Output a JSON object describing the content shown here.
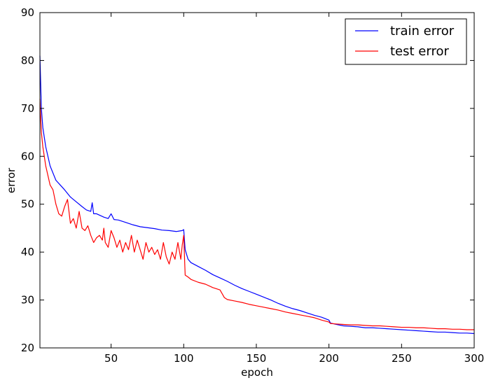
{
  "chart_data": {
    "type": "line",
    "title": "",
    "xlabel": "epoch",
    "ylabel": "error",
    "xlim": [
      1,
      300
    ],
    "ylim": [
      20,
      90
    ],
    "xticks": [
      50,
      100,
      150,
      200,
      250,
      300
    ],
    "yticks": [
      20,
      30,
      40,
      50,
      60,
      70,
      80,
      90
    ],
    "legend_position": "top-right",
    "grid": false,
    "series": [
      {
        "name": "train error",
        "color": "#0000ff",
        "points": [
          [
            1,
            81
          ],
          [
            2,
            70
          ],
          [
            3,
            66
          ],
          [
            5,
            62
          ],
          [
            8,
            58
          ],
          [
            12,
            55
          ],
          [
            15,
            54
          ],
          [
            18,
            53
          ],
          [
            22,
            51.5
          ],
          [
            26,
            50.5
          ],
          [
            30,
            49.5
          ],
          [
            33,
            48.8
          ],
          [
            36,
            48.5
          ],
          [
            37,
            50.3
          ],
          [
            38,
            48
          ],
          [
            40,
            48
          ],
          [
            45,
            47.3
          ],
          [
            48,
            47
          ],
          [
            50,
            48
          ],
          [
            52,
            46.8
          ],
          [
            55,
            46.7
          ],
          [
            60,
            46.2
          ],
          [
            65,
            45.7
          ],
          [
            70,
            45.3
          ],
          [
            75,
            45.1
          ],
          [
            80,
            44.9
          ],
          [
            85,
            44.6
          ],
          [
            90,
            44.5
          ],
          [
            95,
            44.3
          ],
          [
            99,
            44.5
          ],
          [
            100,
            44.7
          ],
          [
            101,
            40.5
          ],
          [
            103,
            38.5
          ],
          [
            105,
            37.8
          ],
          [
            110,
            37
          ],
          [
            115,
            36.2
          ],
          [
            120,
            35.3
          ],
          [
            125,
            34.6
          ],
          [
            130,
            33.9
          ],
          [
            135,
            33.1
          ],
          [
            140,
            32.4
          ],
          [
            145,
            31.8
          ],
          [
            150,
            31.2
          ],
          [
            155,
            30.6
          ],
          [
            160,
            30
          ],
          [
            165,
            29.3
          ],
          [
            170,
            28.7
          ],
          [
            175,
            28.2
          ],
          [
            180,
            27.8
          ],
          [
            185,
            27.3
          ],
          [
            190,
            26.8
          ],
          [
            195,
            26.4
          ],
          [
            200,
            25.8
          ],
          [
            201,
            25.2
          ],
          [
            205,
            24.9
          ],
          [
            210,
            24.6
          ],
          [
            215,
            24.5
          ],
          [
            220,
            24.4
          ],
          [
            225,
            24.2
          ],
          [
            230,
            24.2
          ],
          [
            235,
            24.1
          ],
          [
            240,
            24
          ],
          [
            245,
            23.9
          ],
          [
            250,
            23.8
          ],
          [
            255,
            23.7
          ],
          [
            260,
            23.6
          ],
          [
            265,
            23.5
          ],
          [
            270,
            23.4
          ],
          [
            275,
            23.3
          ],
          [
            280,
            23.3
          ],
          [
            285,
            23.2
          ],
          [
            290,
            23.1
          ],
          [
            295,
            23.1
          ],
          [
            300,
            23
          ]
        ]
      },
      {
        "name": "test error",
        "color": "#ff0000",
        "points": [
          [
            1,
            72
          ],
          [
            2,
            65
          ],
          [
            3,
            62
          ],
          [
            5,
            58
          ],
          [
            8,
            54
          ],
          [
            10,
            53
          ],
          [
            12,
            50
          ],
          [
            14,
            48
          ],
          [
            16,
            47.5
          ],
          [
            18,
            49.5
          ],
          [
            20,
            51
          ],
          [
            22,
            46
          ],
          [
            24,
            47
          ],
          [
            26,
            45
          ],
          [
            28,
            48.5
          ],
          [
            30,
            45
          ],
          [
            32,
            44.5
          ],
          [
            34,
            45.5
          ],
          [
            36,
            43.5
          ],
          [
            38,
            42
          ],
          [
            40,
            43
          ],
          [
            42,
            43.5
          ],
          [
            44,
            42.5
          ],
          [
            45,
            45
          ],
          [
            46,
            42
          ],
          [
            48,
            41
          ],
          [
            50,
            44.5
          ],
          [
            52,
            43
          ],
          [
            54,
            41
          ],
          [
            56,
            42.5
          ],
          [
            58,
            40
          ],
          [
            60,
            42
          ],
          [
            62,
            40.5
          ],
          [
            64,
            43.5
          ],
          [
            66,
            40
          ],
          [
            68,
            42.5
          ],
          [
            70,
            40.5
          ],
          [
            72,
            38.5
          ],
          [
            74,
            42
          ],
          [
            76,
            40
          ],
          [
            78,
            41
          ],
          [
            80,
            39.5
          ],
          [
            82,
            40.5
          ],
          [
            84,
            38.5
          ],
          [
            86,
            42
          ],
          [
            88,
            39
          ],
          [
            90,
            37.5
          ],
          [
            92,
            40
          ],
          [
            94,
            38.5
          ],
          [
            96,
            42
          ],
          [
            98,
            38.5
          ],
          [
            99,
            41.5
          ],
          [
            100,
            43.5
          ],
          [
            101,
            35.2
          ],
          [
            103,
            34.8
          ],
          [
            105,
            34.3
          ],
          [
            110,
            33.7
          ],
          [
            115,
            33.3
          ],
          [
            120,
            32.6
          ],
          [
            125,
            32.1
          ],
          [
            128,
            30.5
          ],
          [
            130,
            30.1
          ],
          [
            135,
            29.8
          ],
          [
            140,
            29.5
          ],
          [
            145,
            29.1
          ],
          [
            150,
            28.8
          ],
          [
            155,
            28.5
          ],
          [
            160,
            28.2
          ],
          [
            165,
            27.9
          ],
          [
            170,
            27.5
          ],
          [
            175,
            27.2
          ],
          [
            180,
            26.9
          ],
          [
            185,
            26.6
          ],
          [
            190,
            26.3
          ],
          [
            195,
            25.8
          ],
          [
            200,
            25.4
          ],
          [
            201,
            25.1
          ],
          [
            205,
            25
          ],
          [
            210,
            24.9
          ],
          [
            215,
            24.8
          ],
          [
            220,
            24.8
          ],
          [
            225,
            24.7
          ],
          [
            230,
            24.6
          ],
          [
            235,
            24.6
          ],
          [
            240,
            24.5
          ],
          [
            245,
            24.4
          ],
          [
            250,
            24.3
          ],
          [
            255,
            24.3
          ],
          [
            260,
            24.2
          ],
          [
            265,
            24.2
          ],
          [
            270,
            24.1
          ],
          [
            275,
            24
          ],
          [
            280,
            24
          ],
          [
            285,
            23.9
          ],
          [
            290,
            23.9
          ],
          [
            295,
            23.8
          ],
          [
            300,
            23.8
          ]
        ]
      }
    ]
  }
}
